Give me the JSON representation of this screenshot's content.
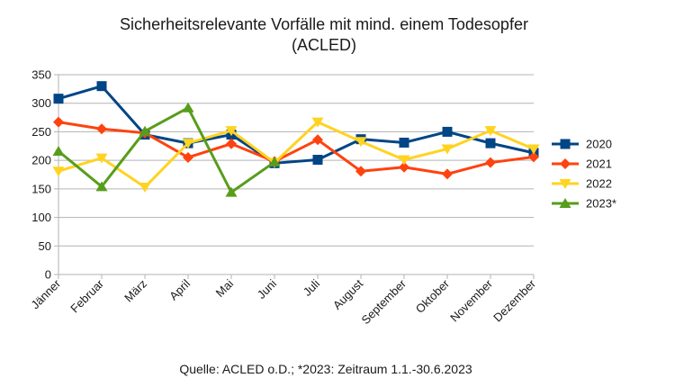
{
  "chart_data": {
    "type": "line",
    "title": "Sicherheitsrelevante Vorfälle mit mind. einem Todesopfer",
    "subtitle": "(ACLED)",
    "xlabel": "",
    "ylabel": "",
    "ylim": [
      0,
      350
    ],
    "yticks": [
      0,
      50,
      100,
      150,
      200,
      250,
      300,
      350
    ],
    "grid": true,
    "legend_position": "right",
    "categories": [
      "Jänner",
      "Februar",
      "März",
      "April",
      "Mai",
      "Juni",
      "Juli",
      "August",
      "September",
      "Oktober",
      "November",
      "Dezember"
    ],
    "series": [
      {
        "name": "2020",
        "color": "#004586",
        "marker": "square",
        "values": [
          308,
          330,
          245,
          230,
          245,
          195,
          201,
          237,
          231,
          250,
          230,
          213
        ]
      },
      {
        "name": "2021",
        "color": "#ff420e",
        "marker": "diamond",
        "values": [
          267,
          255,
          248,
          205,
          229,
          198,
          236,
          181,
          188,
          176,
          196,
          206
        ]
      },
      {
        "name": "2022",
        "color": "#ffd320",
        "marker": "triangle-down",
        "values": [
          181,
          204,
          153,
          230,
          252,
          196,
          267,
          233,
          201,
          220,
          252,
          220
        ]
      },
      {
        "name": "2023*",
        "color": "#579d1c",
        "marker": "triangle-up",
        "values": [
          216,
          154,
          251,
          292,
          144,
          197,
          null,
          null,
          null,
          null,
          null,
          null
        ]
      }
    ],
    "source_note": "Quelle: ACLED o.D.; *2023: Zeitraum 1.1.-30.6.2023"
  }
}
